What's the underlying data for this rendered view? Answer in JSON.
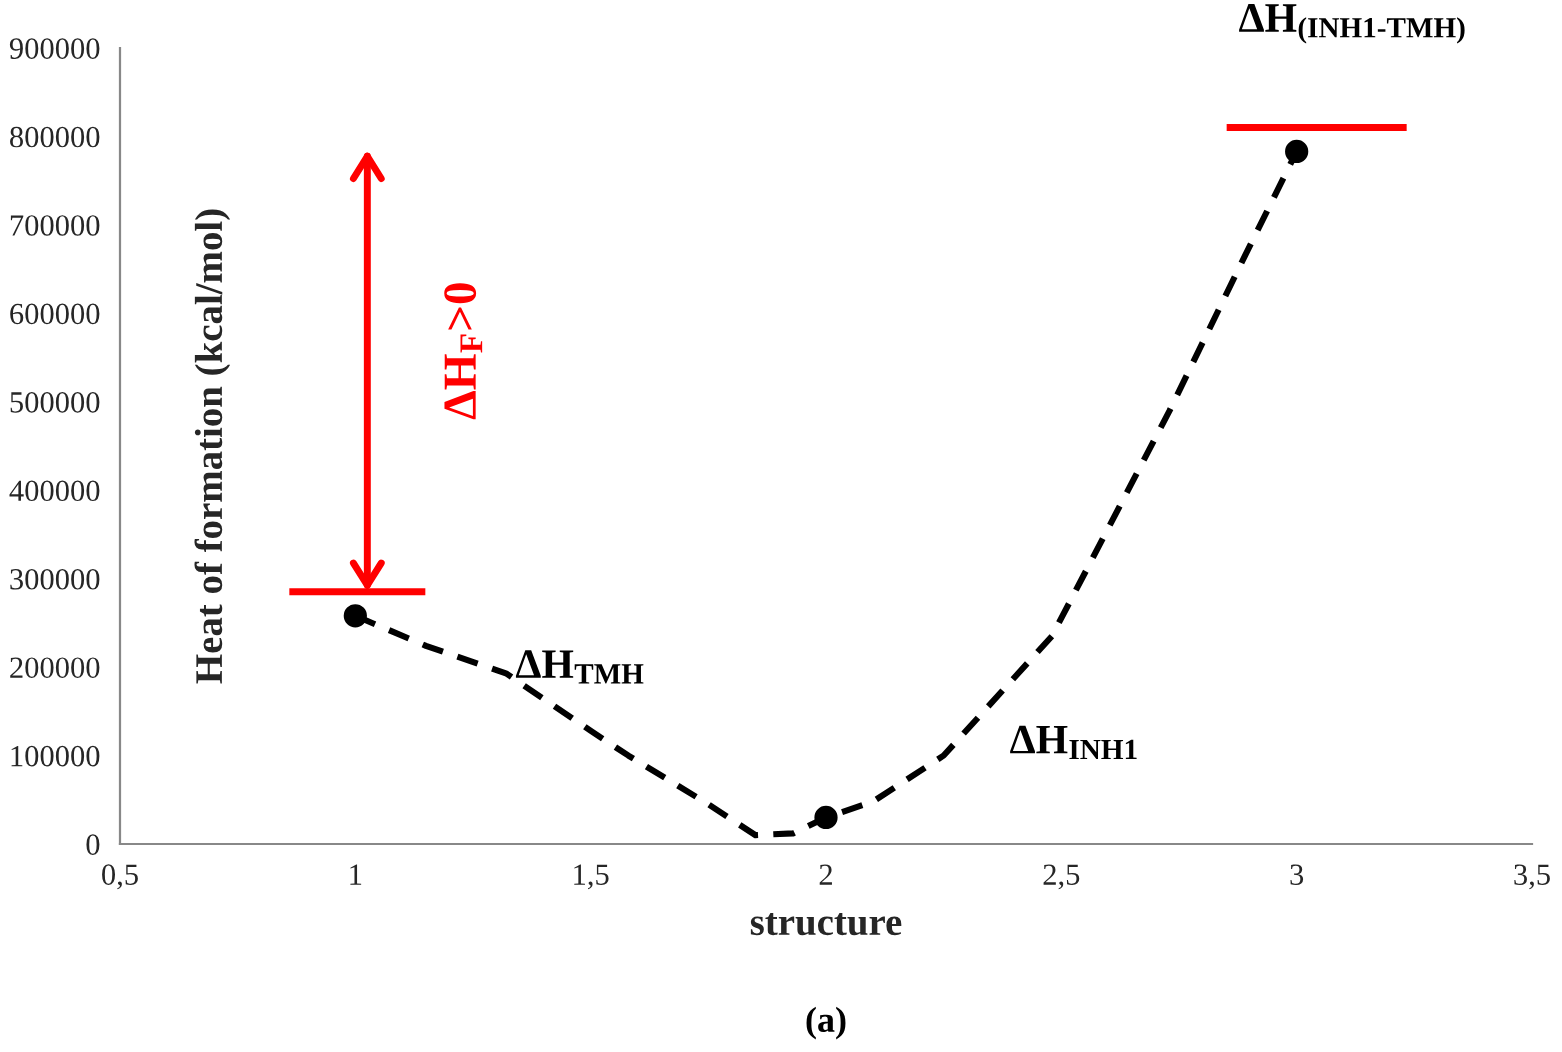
{
  "chart_data": {
    "type": "scatter",
    "xlabel": "structure",
    "ylabel": "Heat of formation (kcal/mol)",
    "series": [
      {
        "type": "line",
        "color": "#000000",
        "x": [
          1,
          1.15,
          1.32,
          1.5,
          1.58,
          1.75,
          1.85,
          1.93,
          2,
          2.1,
          2.25,
          2.48,
          2.73,
          2.89,
          3
        ],
        "values": [
          258000,
          224000,
          193000,
          128000,
          100000,
          45000,
          10000,
          12000,
          30000,
          48000,
          100000,
          235000,
          490000,
          665000,
          783000
        ],
        "line_style": "dashed"
      },
      {
        "color": "#000000",
        "x": [
          1,
          2,
          3
        ],
        "values": [
          258000,
          30000,
          783000
        ],
        "marker": "circle"
      }
    ],
    "grid": false,
    "legend": false,
    "xlim": [
      0.5,
      3.5
    ],
    "xticks": [
      {
        "value": 0.5,
        "label": "0,5"
      },
      1,
      {
        "value": 1.5,
        "label": "1,5"
      },
      2,
      {
        "value": 2.5,
        "label": "2,5"
      },
      3,
      {
        "value": 3.5,
        "label": "3,5"
      }
    ],
    "ylim": [
      0,
      900000
    ],
    "yticks": [
      0,
      100000,
      200000,
      300000,
      400000,
      500000,
      600000,
      700000,
      800000,
      900000
    ],
    "annotations": [
      "ΔH$_{TMH}$",
      "ΔH$_{INH1}$",
      "ΔH$_{(INH1-TMH)}$",
      "ΔH$_{F}$>0",
      "(a)"
    ]
  }
}
